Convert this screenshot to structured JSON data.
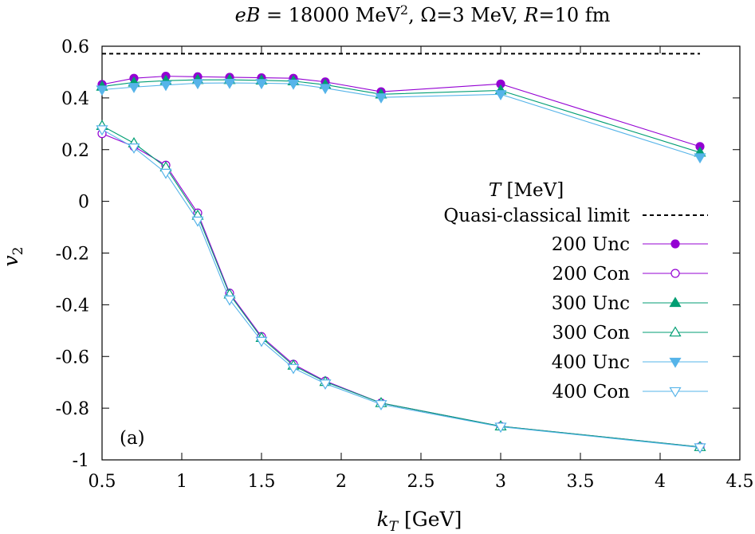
{
  "chart_data": {
    "type": "line",
    "title": "eB = 18000 MeV², Ω=3 MeV, R=10 fm",
    "xlabel": "k_T [GeV]",
    "ylabel": "v_2",
    "xlim": [
      0.5,
      4.5
    ],
    "ylim": [
      -1,
      0.6
    ],
    "xticks": [
      "0.5",
      "1",
      "1.5",
      "2",
      "2.5",
      "3",
      "3.5",
      "4",
      "4.5"
    ],
    "yticks": [
      "-1",
      "-0.8",
      "-0.6",
      "-0.4",
      "-0.2",
      "0",
      "0.2",
      "0.4",
      "0.6"
    ],
    "xtick_values": [
      0.5,
      1,
      1.5,
      2,
      2.5,
      3,
      3.5,
      4,
      4.5
    ],
    "ytick_values": [
      -1,
      -0.8,
      -0.6,
      -0.4,
      -0.2,
      0,
      0.2,
      0.4,
      0.6
    ],
    "panel_label": "(a)",
    "legend_title": "T [MeV]",
    "legend_position": "right",
    "grid": false,
    "x": [
      0.5,
      0.7,
      0.9,
      1.1,
      1.3,
      1.5,
      1.7,
      1.9,
      2.25,
      3.0,
      4.25
    ],
    "reference_line": {
      "name": "Quasi-classical limit",
      "y": 0.571,
      "style": "dashed",
      "color": "#000000"
    },
    "series": [
      {
        "name": "200 Unc",
        "color": "#9400d3",
        "marker": "circle",
        "filled": true,
        "values": [
          0.452,
          0.476,
          0.484,
          0.482,
          0.48,
          0.478,
          0.476,
          0.462,
          0.424,
          0.454,
          0.212
        ]
      },
      {
        "name": "200 Con",
        "color": "#9400d3",
        "marker": "circle",
        "filled": false,
        "values": [
          0.262,
          0.212,
          0.14,
          -0.045,
          -0.355,
          -0.523,
          -0.63,
          -0.695,
          -0.78,
          -0.87,
          -0.95
        ]
      },
      {
        "name": "300 Unc",
        "color": "#009e73",
        "marker": "triangle-up",
        "filled": true,
        "values": [
          0.444,
          0.46,
          0.467,
          0.47,
          0.47,
          0.468,
          0.465,
          0.451,
          0.414,
          0.429,
          0.189
        ]
      },
      {
        "name": "300 Con",
        "color": "#009e73",
        "marker": "triangle-up",
        "filled": false,
        "values": [
          0.292,
          0.225,
          0.132,
          -0.055,
          -0.36,
          -0.528,
          -0.635,
          -0.698,
          -0.78,
          -0.87,
          -0.95
        ]
      },
      {
        "name": "400 Unc",
        "color": "#56b4e9",
        "marker": "triangle-down",
        "filled": true,
        "values": [
          0.432,
          0.442,
          0.45,
          0.457,
          0.458,
          0.457,
          0.455,
          0.438,
          0.402,
          0.414,
          0.17
        ]
      },
      {
        "name": "400 Con",
        "color": "#56b4e9",
        "marker": "triangle-down",
        "filled": false,
        "values": [
          0.278,
          0.208,
          0.11,
          -0.075,
          -0.38,
          -0.54,
          -0.645,
          -0.705,
          -0.785,
          -0.872,
          -0.952
        ]
      }
    ]
  }
}
